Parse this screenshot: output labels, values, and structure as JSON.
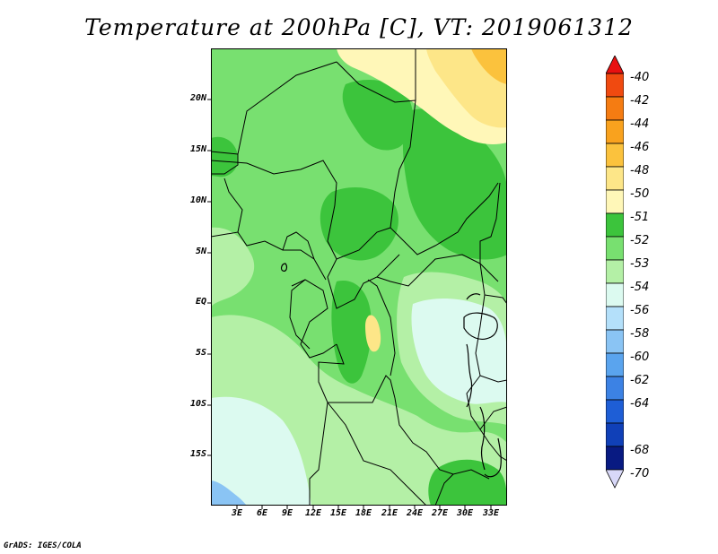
{
  "title": "Temperature at 200hPa [C], VT: 2019061312",
  "credit": "GrADS: IGES/COLA",
  "lat_ticks": [
    "20N",
    "15N",
    "10N",
    "5N",
    "EQ",
    "5S",
    "10S",
    "15S"
  ],
  "lon_ticks": [
    "3E",
    "6E",
    "9E",
    "12E",
    "15E",
    "18E",
    "21E",
    "24E",
    "27E",
    "30E",
    "33E"
  ],
  "colorbar": {
    "labels": [
      "-40",
      "-42",
      "-44",
      "-46",
      "-48",
      "-50",
      "-51",
      "-52",
      "-53",
      "-54",
      "-56",
      "-58",
      "-60",
      "-62",
      "-64",
      "-68",
      "-70"
    ],
    "colors": [
      "#e81010",
      "#f04a10",
      "#f57c12",
      "#f9a21e",
      "#fbc23d",
      "#fde688",
      "#fff7b8",
      "#3cc43c",
      "#78e070",
      "#b4f0a6",
      "#dcfaf0",
      "#b4e0fa",
      "#8ac4f4",
      "#5aa4ee",
      "#3c82e4",
      "#1e5ed6",
      "#1040b8",
      "#081a82",
      "#d8d8f8"
    ]
  },
  "map_field": {
    "dominant_color": "#78e070",
    "region_colors": {
      "warm_northeast": "#fde688",
      "cool_east": "#dcfaf0",
      "cool_southwest": "#dcfaf0",
      "coldest_corner": "#8ac4f4"
    }
  }
}
